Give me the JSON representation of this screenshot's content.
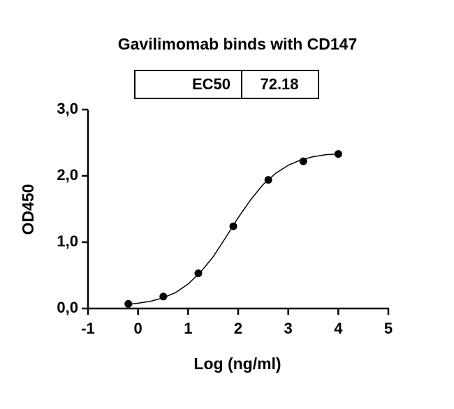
{
  "chart_data": {
    "type": "scatter",
    "title": "Gavilimomab binds with CD147",
    "table": {
      "header": "EC50",
      "value": "72.18"
    },
    "x_label": "Log (ng/ml)",
    "y_label": "OD450",
    "x": [
      -0.194,
      0.505,
      1.204,
      1.903,
      2.602,
      3.301,
      4.0
    ],
    "values": [
      0.07,
      0.18,
      0.53,
      1.24,
      1.94,
      2.22,
      2.33
    ],
    "color": "#000000",
    "fit": {
      "x": [
        -0.2,
        0,
        0.25,
        0.5,
        0.75,
        1,
        1.25,
        1.5,
        1.75,
        2,
        2.25,
        2.5,
        2.75,
        3,
        3.25,
        3.5,
        3.75,
        4
      ],
      "values": [
        0.06,
        0.08,
        0.11,
        0.16,
        0.24,
        0.37,
        0.55,
        0.78,
        1.07,
        1.37,
        1.64,
        1.87,
        2.04,
        2.16,
        2.24,
        2.29,
        2.32,
        2.33
      ]
    },
    "xlim": [
      -1,
      5
    ],
    "xticks": [
      -1,
      0,
      1,
      2,
      3,
      4,
      5
    ],
    "ylim": [
      0,
      3
    ],
    "yticks": [
      {
        "value": 0,
        "label": "0,0"
      },
      {
        "value": 1,
        "label": "1,0"
      },
      {
        "value": 2,
        "label": "2,0"
      },
      {
        "value": 3,
        "label": "3,0"
      }
    ]
  }
}
